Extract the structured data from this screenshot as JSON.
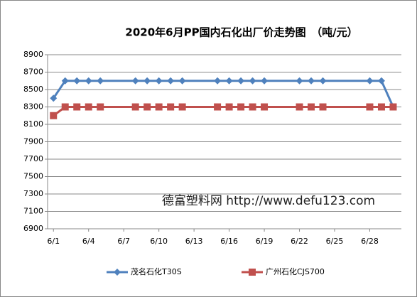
{
  "chart_data": {
    "type": "line",
    "title": "2020年6月PP国内石化出厂价走势图　（吨/元）",
    "annotation": "德富塑料网  http://www.defu123.com",
    "x": [
      "6/1",
      "6/2",
      "6/3",
      "6/4",
      "6/5",
      "6/8",
      "6/9",
      "6/10",
      "6/11",
      "6/12",
      "6/15",
      "6/16",
      "6/17",
      "6/18",
      "6/19",
      "6/22",
      "6/23",
      "6/24",
      "6/28",
      "6/29",
      "6/30"
    ],
    "series": [
      {
        "name": "茂名石化T30S",
        "color": "#4f81bd",
        "marker": "diamond",
        "values": [
          8400,
          8600,
          8600,
          8600,
          8600,
          8600,
          8600,
          8600,
          8600,
          8600,
          8600,
          8600,
          8600,
          8600,
          8600,
          8600,
          8600,
          8600,
          8600,
          8600,
          8300
        ]
      },
      {
        "name": "广州石化CJS700",
        "color": "#c0504d",
        "marker": "square",
        "values": [
          8200,
          8300,
          8300,
          8300,
          8300,
          8300,
          8300,
          8300,
          8300,
          8300,
          8300,
          8300,
          8300,
          8300,
          8300,
          8300,
          8300,
          8300,
          8300,
          8300,
          8300
        ]
      }
    ],
    "xlim": [
      "6/1",
      "6/30"
    ],
    "xticks": [
      "6/1",
      "6/4",
      "6/7",
      "6/10",
      "6/13",
      "6/16",
      "6/19",
      "6/22",
      "6/25",
      "6/28"
    ],
    "ylim": [
      6900,
      8900
    ],
    "yticks": [
      6900,
      7100,
      7300,
      7500,
      7700,
      7900,
      8100,
      8300,
      8500,
      8700,
      8900
    ],
    "grid": true,
    "legend": "bottom"
  }
}
